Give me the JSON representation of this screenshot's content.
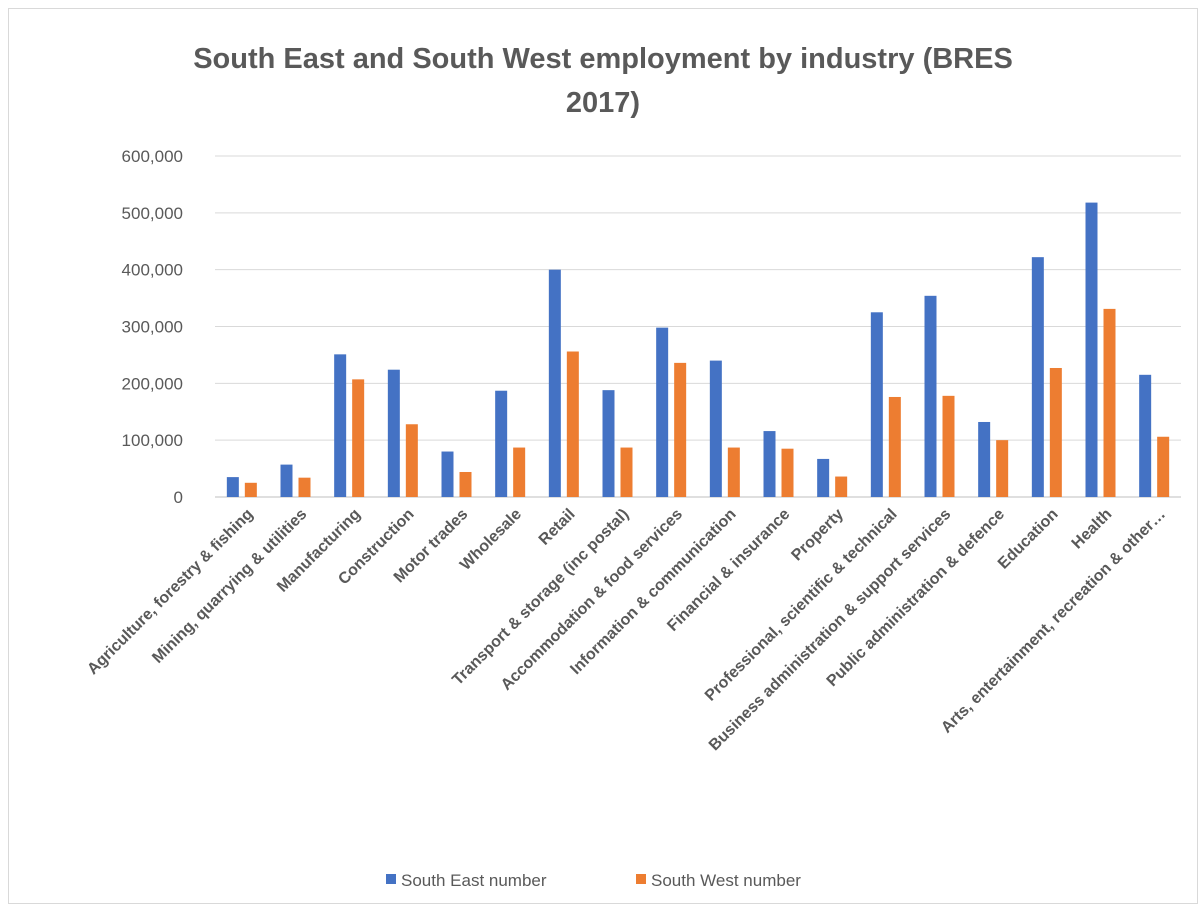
{
  "chart_data": {
    "type": "bar",
    "title_line1": "South East and South West employment by industry (BRES",
    "title_line2": "2017)",
    "categories": [
      "Agriculture, forestry & fishing",
      "Mining, quarrying & utilities",
      "Manufacturing",
      "Construction",
      "Motor trades",
      "Wholesale",
      "Retail",
      "Transport & storage (inc postal)",
      "Accommodation & food services",
      "Information & communication",
      "Financial & insurance",
      "Property",
      "Professional, scientific & technical",
      "Business administration & support services",
      "Public administration & defence",
      "Education",
      "Health",
      "Arts, entertainment, recreation & other…"
    ],
    "series": [
      {
        "name": "South East number",
        "color": "#4472c4",
        "values": [
          35000,
          57000,
          251000,
          224000,
          80000,
          187000,
          400000,
          188000,
          298000,
          240000,
          116000,
          67000,
          325000,
          354000,
          132000,
          422000,
          518000,
          215000
        ]
      },
      {
        "name": "South West number",
        "color": "#ed7d31",
        "values": [
          25000,
          34000,
          207000,
          128000,
          44000,
          87000,
          256000,
          87000,
          236000,
          87000,
          85000,
          36000,
          176000,
          178000,
          100000,
          227000,
          331000,
          106000
        ]
      }
    ],
    "ylim": [
      0,
      600000
    ],
    "yticks": [
      "0",
      "100,000",
      "200,000",
      "300,000",
      "400,000",
      "500,000",
      "600,000"
    ],
    "grid": true,
    "legend_position": "bottom"
  }
}
